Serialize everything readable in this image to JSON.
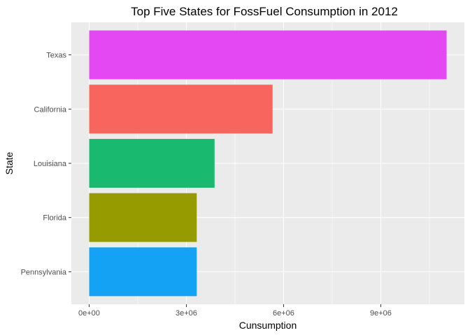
{
  "chart_data": {
    "type": "bar",
    "orientation": "horizontal",
    "title": "Top Five States for FossFuel Consumption in 2012",
    "xlabel": "Cunsumption",
    "ylabel": "State",
    "categories": [
      "Texas",
      "California",
      "Louisiana",
      "Florida",
      "Pennsylvania"
    ],
    "values": [
      11030000,
      5660000,
      3870000,
      3320000,
      3320000
    ],
    "colors": [
      "#E348F3",
      "#F8645E",
      "#19BA6F",
      "#969C00",
      "#14A2F4"
    ],
    "x_ticks": [
      0,
      3000000,
      6000000,
      9000000
    ],
    "x_tick_labels": [
      "0e+00",
      "3e+06",
      "6e+06",
      "9e+06"
    ],
    "xlim": [
      -550000,
      11580000
    ],
    "grid": true,
    "legend": "none"
  }
}
